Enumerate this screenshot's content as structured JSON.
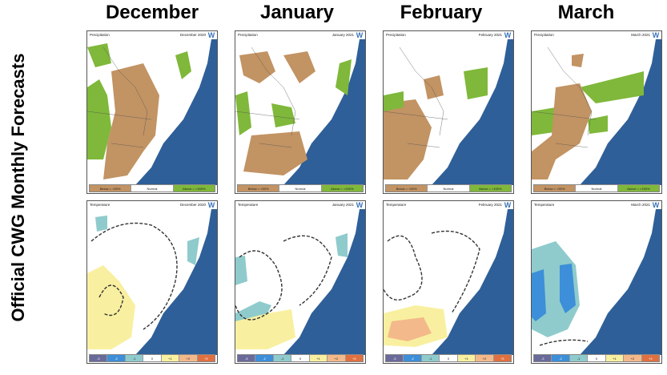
{
  "side_title": "Official CWG Monthly Forecasts",
  "months": [
    "December",
    "January",
    "February",
    "March"
  ],
  "precip_panels": [
    {
      "label": "Precipitation",
      "date": "December 2020"
    },
    {
      "label": "Precipitation",
      "date": "January 2021"
    },
    {
      "label": "Precipitation",
      "date": "February 2021"
    },
    {
      "label": "Precipitation",
      "date": "March 2021"
    }
  ],
  "temp_panels": [
    {
      "label": "Temperature",
      "date": "December 2020"
    },
    {
      "label": "Temperature",
      "date": "January 2021"
    },
    {
      "label": "Temperature",
      "date": "February 2021"
    },
    {
      "label": "Temperature",
      "date": "March 2021"
    }
  ],
  "logo_text": "W",
  "precip_legend": [
    "Below = <50%",
    "Normal",
    "Above = >150%"
  ],
  "temp_legend": [
    "-3",
    "-2",
    "-1",
    "0",
    "+1",
    "+2",
    "+3"
  ],
  "colors": {
    "ocean": "#2e5f98",
    "land": "#ffffff",
    "below": "#c29363",
    "above": "#7fb83a",
    "cool": "#8fcbcc",
    "cold": "#3c8fd8",
    "warm1": "#f8f0a0",
    "warm2": "#f4b98a"
  }
}
